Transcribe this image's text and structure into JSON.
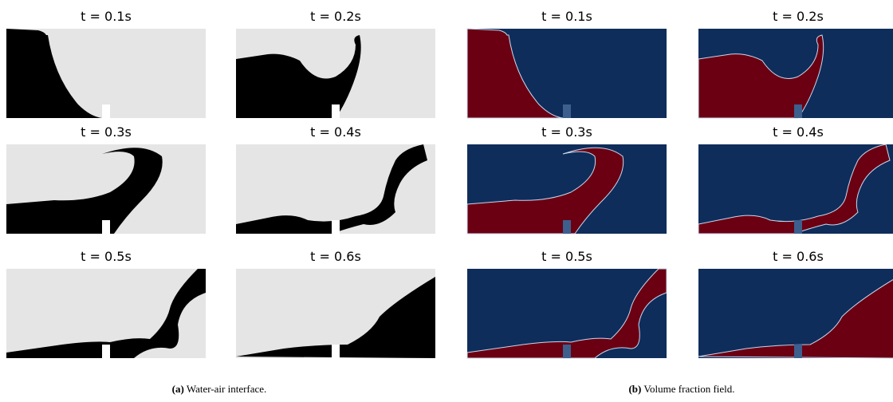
{
  "panels": [
    {
      "label": "(a)",
      "caption": "Water-air interface.",
      "frames": [
        {
          "title": "t = 0.1s"
        },
        {
          "title": "t = 0.2s"
        },
        {
          "title": "t = 0.3s"
        },
        {
          "title": "t = 0.4s"
        },
        {
          "title": "t = 0.5s"
        },
        {
          "title": "t = 0.6s"
        }
      ]
    },
    {
      "label": "(b)",
      "caption": "Volume fraction field.",
      "frames": [
        {
          "title": "t = 0.1s"
        },
        {
          "title": "t = 0.2s"
        },
        {
          "title": "t = 0.3s"
        },
        {
          "title": "t = 0.4s"
        },
        {
          "title": "t = 0.5s"
        },
        {
          "title": "t = 0.6s"
        }
      ]
    }
  ]
}
